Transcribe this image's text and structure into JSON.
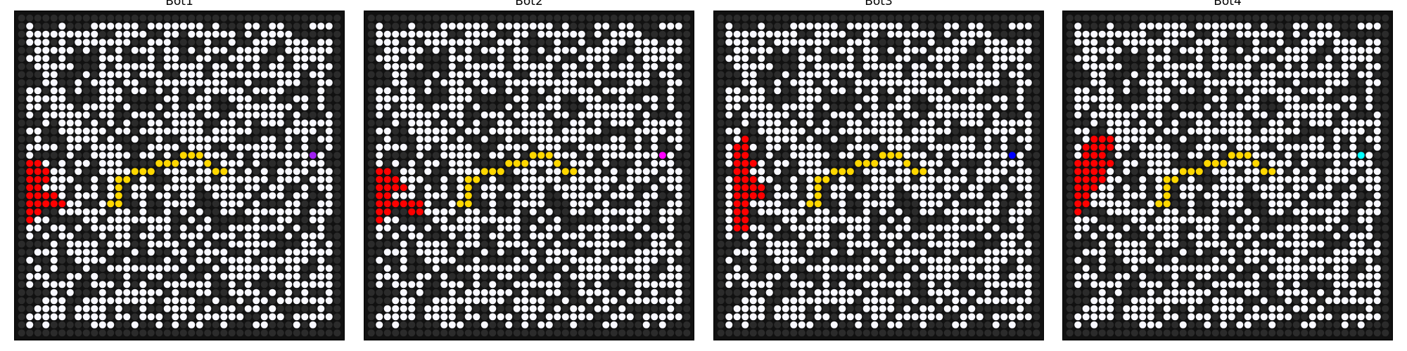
{
  "panels": [
    {
      "title": "Bot1",
      "bot_color": "#a020f0"
    },
    {
      "title": "Bot2",
      "bot_color": "#ff00ff"
    },
    {
      "title": "Bot3",
      "bot_color": "#0000ff"
    },
    {
      "title": "Bot4",
      "bot_color": "#00ffff"
    }
  ],
  "grid": {
    "size": 40,
    "colors": {
      "background": "#111111",
      "wall": "#2b2b2b",
      "open": "#f8f8ff",
      "fire": "#ff0000",
      "path": "#ffd700"
    }
  }
}
